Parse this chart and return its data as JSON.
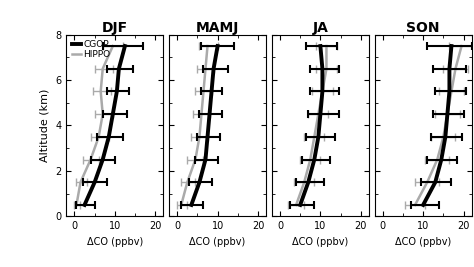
{
  "seasons": [
    "DJF",
    "MAMJ",
    "JA",
    "SON"
  ],
  "altitudes": [
    0.5,
    1.5,
    2.5,
    3.5,
    4.5,
    5.5,
    6.5,
    7.5
  ],
  "cgop": {
    "DJF": {
      "medians": [
        2.5,
        5.0,
        7.0,
        8.5,
        9.5,
        10.5,
        11.0,
        12.5
      ],
      "err_low": [
        0.5,
        2.0,
        4.0,
        5.5,
        7.0,
        8.0,
        8.0,
        7.0
      ],
      "err_high": [
        5.0,
        8.0,
        10.0,
        12.0,
        13.0,
        13.5,
        14.5,
        17.0
      ]
    },
    "MAMJ": {
      "medians": [
        3.5,
        5.5,
        7.0,
        7.5,
        8.0,
        8.5,
        9.0,
        10.0
      ],
      "err_low": [
        1.0,
        3.0,
        4.5,
        5.0,
        5.5,
        6.0,
        6.5,
        6.0
      ],
      "err_high": [
        6.5,
        8.5,
        10.0,
        10.5,
        11.0,
        11.0,
        12.5,
        14.0
      ]
    },
    "JA": {
      "medians": [
        5.0,
        7.0,
        8.5,
        9.5,
        10.0,
        10.5,
        10.5,
        10.0
      ],
      "err_low": [
        2.5,
        4.0,
        5.5,
        6.5,
        7.0,
        7.5,
        7.5,
        6.5
      ],
      "err_high": [
        8.5,
        11.0,
        12.5,
        13.5,
        14.5,
        14.5,
        14.5,
        14.0
      ]
    },
    "SON": {
      "medians": [
        10.0,
        13.0,
        14.5,
        15.5,
        16.0,
        16.5,
        16.5,
        17.0
      ],
      "err_low": [
        7.0,
        9.5,
        11.0,
        12.0,
        12.5,
        13.0,
        12.5,
        11.0
      ],
      "err_high": [
        14.0,
        17.0,
        18.5,
        19.5,
        20.0,
        20.5,
        20.5,
        22.0
      ]
    }
  },
  "hippo": {
    "DJF": {
      "medians": [
        0.5,
        1.5,
        4.0,
        6.0,
        7.0,
        6.5,
        7.0,
        9.5
      ],
      "err_low": [
        0.0,
        0.5,
        2.0,
        4.0,
        5.0,
        4.5,
        5.0,
        7.0
      ],
      "err_high": [
        1.5,
        3.0,
        6.0,
        8.5,
        9.5,
        9.0,
        9.5,
        12.0
      ]
    },
    "MAMJ": {
      "medians": [
        1.0,
        2.5,
        4.5,
        5.5,
        6.0,
        6.5,
        7.0,
        7.5
      ],
      "err_low": [
        0.0,
        1.0,
        2.5,
        3.5,
        4.0,
        4.5,
        5.0,
        5.5
      ],
      "err_high": [
        2.5,
        4.5,
        6.5,
        7.5,
        8.0,
        8.5,
        9.0,
        10.0
      ]
    },
    "JA": {
      "medians": [
        4.0,
        6.0,
        7.5,
        8.5,
        9.5,
        10.5,
        11.5,
        11.5
      ],
      "err_low": [
        2.0,
        3.5,
        5.0,
        6.0,
        7.0,
        8.0,
        9.0,
        9.0
      ],
      "err_high": [
        6.0,
        8.5,
        10.0,
        11.0,
        12.0,
        13.0,
        14.0,
        14.0
      ]
    },
    "SON": {
      "medians": [
        8.0,
        11.0,
        13.5,
        15.0,
        16.0,
        17.0,
        18.0,
        19.5
      ],
      "err_low": [
        5.5,
        8.0,
        10.5,
        12.0,
        13.0,
        14.0,
        15.0,
        16.5
      ],
      "err_high": [
        10.5,
        14.0,
        16.5,
        18.0,
        19.0,
        20.0,
        21.0,
        22.5
      ]
    }
  },
  "ylim": [
    0,
    8
  ],
  "xlim": [
    -2,
    22
  ],
  "xticks": [
    0,
    10,
    20
  ],
  "yticks": [
    0,
    2,
    4,
    6,
    8
  ],
  "xlabel": "ΔCO (ppbv)",
  "ylabel": "Altitude (km)",
  "cgop_color": "#000000",
  "hippo_color": "#aaaaaa",
  "cgop_lw": 2.8,
  "hippo_lw": 1.8,
  "cap_size": 3,
  "cgop_elw": 1.5,
  "hippo_elw": 1.0
}
